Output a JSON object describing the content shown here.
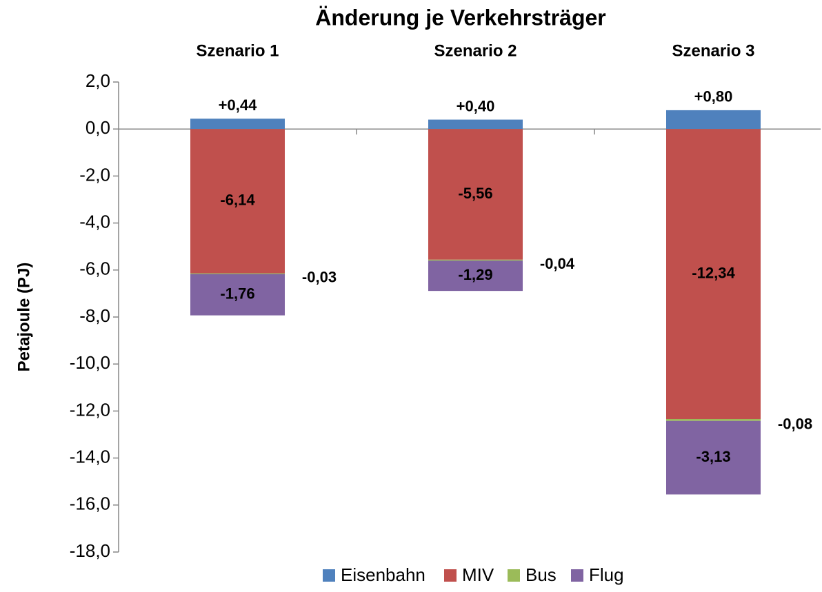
{
  "chart_data": {
    "type": "stacked_bar",
    "title": "Änderung je Verkehrsträger",
    "y_label": "Petajoule (PJ)",
    "categories": [
      "Szenario 1",
      "Szenario 2",
      "Szenario 3"
    ],
    "series": [
      {
        "name": "Eisenbahn",
        "color": "#4f81bd",
        "values": [
          0.44,
          0.4,
          0.8
        ],
        "value_labels": [
          "+0,44",
          "+0,40",
          "+0,80"
        ]
      },
      {
        "name": "MIV",
        "color": "#c0504d",
        "values": [
          -6.14,
          -5.56,
          -12.34
        ],
        "value_labels": [
          "-6,14",
          "-5,56",
          "-12,34"
        ]
      },
      {
        "name": "Bus",
        "color": "#9bbb59",
        "values": [
          -0.03,
          -0.04,
          -0.08
        ],
        "value_labels": [
          "-0,03",
          "-0,04",
          "-0,08"
        ]
      },
      {
        "name": "Flug",
        "color": "#8064a2",
        "values": [
          -1.76,
          -1.29,
          -3.13
        ],
        "value_labels": [
          "-1,76",
          "-1,29",
          "-3,13"
        ]
      }
    ],
    "ylim": [
      -18,
      2
    ],
    "yticks": [
      {
        "value": 2,
        "label": "2,0"
      },
      {
        "value": 0,
        "label": "0,0"
      },
      {
        "value": -2,
        "label": "-2,0"
      },
      {
        "value": -4,
        "label": "-4,0"
      },
      {
        "value": -6,
        "label": "-6,0"
      },
      {
        "value": -8,
        "label": "-8,0"
      },
      {
        "value": -10,
        "label": "-10,0"
      },
      {
        "value": -12,
        "label": "-12,0"
      },
      {
        "value": -14,
        "label": "-14,0"
      },
      {
        "value": -16,
        "label": "-16,0"
      },
      {
        "value": -18,
        "label": "-18,0"
      }
    ],
    "legend": "bottom"
  }
}
